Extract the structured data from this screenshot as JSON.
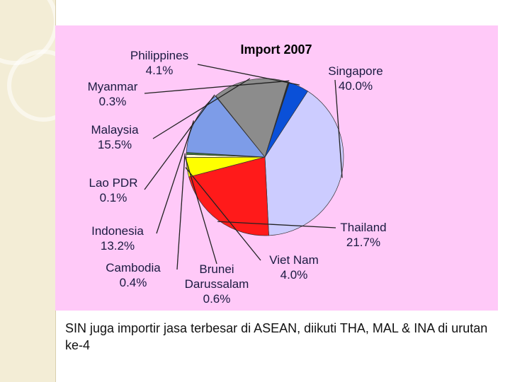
{
  "caption": "SIN juga importir jasa terbesar di ASEAN, diikuti THA, MAL & INA di urutan ke-4",
  "chart_data": {
    "type": "pie",
    "title": "Import 2007",
    "slices": [
      {
        "label": "Singapore",
        "pct_label": "40.0%",
        "value": 40.0,
        "color": "#ccccff"
      },
      {
        "label": "Thailand",
        "pct_label": "21.7%",
        "value": 21.7,
        "color": "#ff1a1a"
      },
      {
        "label": "Viet Nam",
        "pct_label": "4.0%",
        "value": 4.0,
        "color": "#ffff00"
      },
      {
        "label": "Brunei Darussalam",
        "pct_label": "0.6%",
        "value": 0.6,
        "color": "#fffbd8"
      },
      {
        "label": "Cambodia",
        "pct_label": "0.4%",
        "value": 0.4,
        "color": "#3a7a3a"
      },
      {
        "label": "Indonesia",
        "pct_label": "13.2%",
        "value": 13.2,
        "color": "#7d9ce8"
      },
      {
        "label": "Lao PDR",
        "pct_label": "0.1%",
        "value": 0.1,
        "color": "#dddddd"
      },
      {
        "label": "Malaysia",
        "pct_label": "15.5%",
        "value": 15.5,
        "color": "#8c8c8c"
      },
      {
        "label": "Myanmar",
        "pct_label": "0.3%",
        "value": 0.3,
        "color": "#2a2a2a"
      },
      {
        "label": "Philippines",
        "pct_label": "4.1%",
        "value": 4.1,
        "color": "#0a50d8"
      }
    ]
  }
}
